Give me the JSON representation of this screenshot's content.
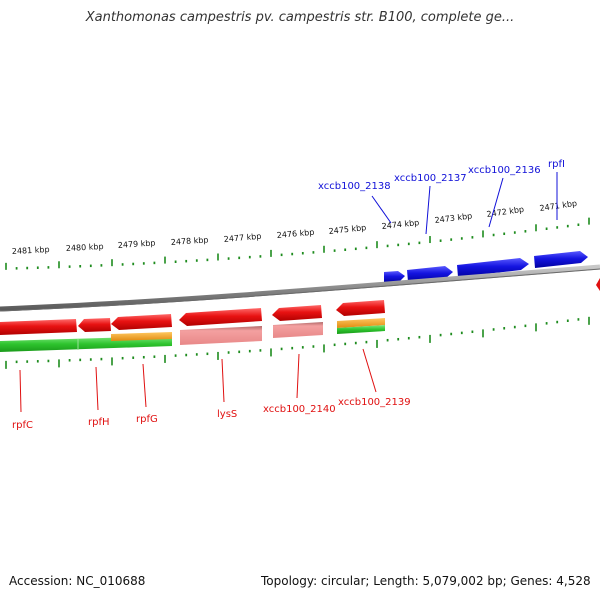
{
  "title": "Xanthomonas campestris pv. campestris str. B100, complete ge...",
  "accession": "Accession: NC_010688",
  "summary": "Topology: circular; Length: 5,079,002 bp; Genes: 4,528",
  "colors": {
    "forward_gene": "#1010d8",
    "reverse_gene": "#e01010",
    "reverse_gene_light": "#f08c8c",
    "cds_green": "#2ec42e",
    "cds_orange": "#f0a020",
    "backbone": "#8a8a8a",
    "tick": "#1e8c1e"
  },
  "scale_labels": [
    "2481 kbp",
    "2480 kbp",
    "2479 kbp",
    "2478 kbp",
    "2477 kbp",
    "2476 kbp",
    "2475 kbp",
    "2474 kbp",
    "2473 kbp",
    "2472 kbp",
    "2471 kbp"
  ],
  "forward_gene_labels": [
    "xccb100_2138",
    "xccb100_2137",
    "xccb100_2136",
    "rpfI"
  ],
  "reverse_gene_labels": [
    "rpfC",
    "rpfH",
    "rpfG",
    "lysS",
    "xccb100_2140",
    "xccb100_2139"
  ]
}
